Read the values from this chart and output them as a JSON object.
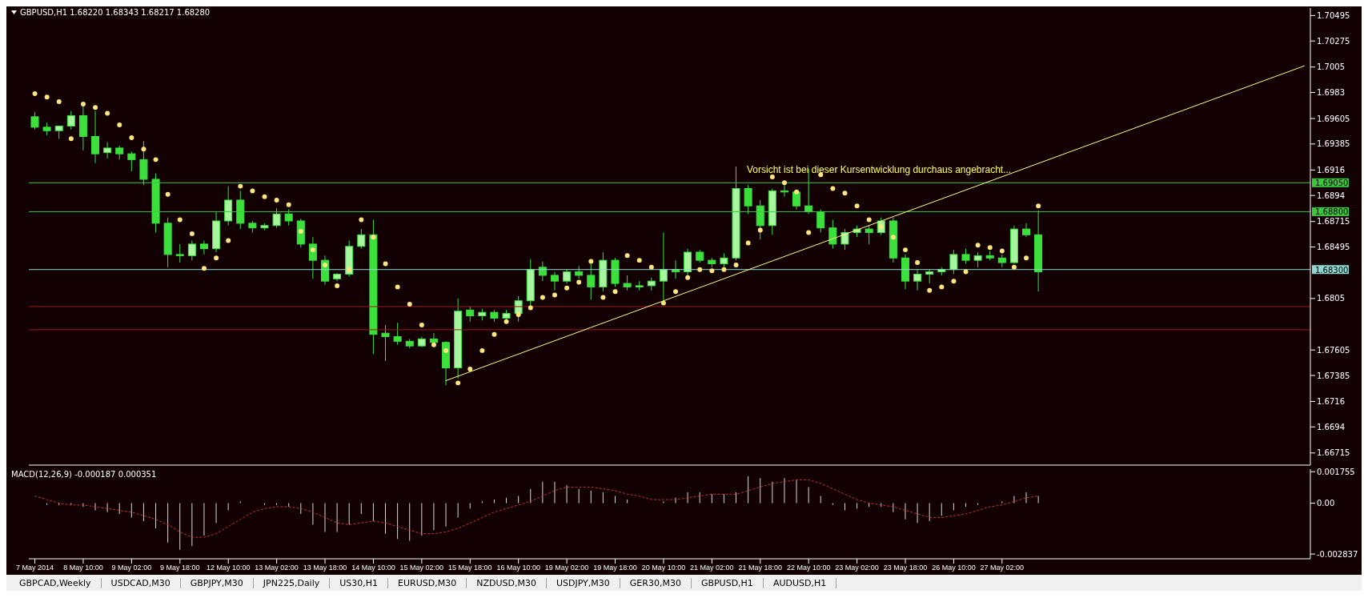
{
  "chart_data": [
    {
      "type": "candlestick",
      "title": "GBPUSD,H1  1.68220 1.68343 1.68217 1.68280",
      "color": "#3ce03c",
      "tick_labels": "y",
      "categories": [
        null,
        null,
        null,
        null,
        null,
        null,
        null,
        null,
        null,
        null,
        null,
        null,
        null,
        null,
        null,
        null,
        null,
        null,
        null,
        null,
        null,
        null,
        null,
        null,
        null,
        null,
        null,
        null,
        null,
        null,
        null,
        null,
        null,
        null,
        null,
        null,
        null,
        null,
        null,
        null,
        null,
        null,
        null,
        null,
        null,
        null,
        null,
        null,
        null,
        null,
        null,
        null,
        null,
        null,
        null,
        null,
        null,
        null,
        null,
        null,
        null,
        null,
        null,
        null,
        null,
        null,
        null,
        null,
        null,
        null,
        null,
        null,
        null,
        null,
        null,
        null,
        null,
        null,
        null,
        null,
        null,
        null,
        null,
        null,
        null,
        null,
        null,
        null,
        null,
        null,
        null,
        null,
        null,
        null,
        null,
        null,
        null,
        null,
        null,
        null,
        null,
        null,
        null,
        null,
        null,
        null
      ],
      "ohlc": [
        [
          1.6962,
          1.6966,
          1.6951,
          1.6953
        ],
        [
          1.6953,
          1.6957,
          1.6946,
          1.695
        ],
        [
          1.695,
          1.6954,
          1.6943,
          1.6954
        ],
        [
          1.6954,
          1.6967,
          1.6951,
          1.6963
        ],
        [
          1.6963,
          1.6973,
          1.6933,
          1.6945
        ],
        [
          1.6945,
          1.6967,
          1.6922,
          1.693
        ],
        [
          1.6931,
          1.694,
          1.6926,
          1.6935
        ],
        [
          1.6935,
          1.6937,
          1.6925,
          1.693
        ],
        [
          1.693,
          1.6932,
          1.6915,
          1.6925
        ],
        [
          1.6925,
          1.6941,
          1.6903,
          1.6908
        ],
        [
          1.6908,
          1.6913,
          1.6862,
          1.687
        ],
        [
          1.687,
          1.6875,
          1.6832,
          1.6843
        ],
        [
          1.6843,
          1.6852,
          1.6836,
          1.6842
        ],
        [
          1.6842,
          1.6855,
          1.6838,
          1.6852
        ],
        [
          1.6852,
          1.6855,
          1.6843,
          1.6848
        ],
        [
          1.6848,
          1.688,
          1.6845,
          1.6872
        ],
        [
          1.6872,
          1.6902,
          1.6868,
          1.689
        ],
        [
          1.689,
          1.6898,
          1.6865,
          1.687
        ],
        [
          1.687,
          1.6872,
          1.6862,
          1.6866
        ],
        [
          1.6866,
          1.687,
          1.6864,
          1.6868
        ],
        [
          1.6868,
          1.6883,
          1.6866,
          1.6878
        ],
        [
          1.6878,
          1.6882,
          1.6868,
          1.6872
        ],
        [
          1.6872,
          1.6874,
          1.6849,
          1.6852
        ],
        [
          1.6852,
          1.6858,
          1.6822,
          1.6838
        ],
        [
          1.6838,
          1.6842,
          1.6817,
          1.682
        ],
        [
          1.6822,
          1.6827,
          1.682,
          1.6826
        ],
        [
          1.6826,
          1.6855,
          1.6824,
          1.685
        ],
        [
          1.685,
          1.6865,
          1.6848,
          1.686
        ],
        [
          1.686,
          1.6873,
          1.6757,
          1.6774
        ],
        [
          1.6775,
          1.6782,
          1.6751,
          1.6772
        ],
        [
          1.6772,
          1.6784,
          1.6765,
          1.6768
        ],
        [
          1.6768,
          1.677,
          1.6762,
          1.6764
        ],
        [
          1.6764,
          1.6772,
          1.6763,
          1.677
        ],
        [
          1.677,
          1.6775,
          1.6765,
          1.6767
        ],
        [
          1.6767,
          1.6768,
          1.673,
          1.6745
        ],
        [
          1.6745,
          1.6805,
          1.6736,
          1.6794
        ],
        [
          1.6795,
          1.6798,
          1.6785,
          1.679
        ],
        [
          1.679,
          1.6796,
          1.6786,
          1.6793
        ],
        [
          1.6793,
          1.6795,
          1.6785,
          1.6788
        ],
        [
          1.6788,
          1.6795,
          1.6786,
          1.6792
        ],
        [
          1.6792,
          1.6807,
          1.6785,
          1.6803
        ],
        [
          1.6803,
          1.6839,
          1.6797,
          1.683
        ],
        [
          1.6832,
          1.6837,
          1.682,
          1.6825
        ],
        [
          1.6825,
          1.6828,
          1.6812,
          1.682
        ],
        [
          1.682,
          1.683,
          1.6818,
          1.6828
        ],
        [
          1.6828,
          1.6833,
          1.6822,
          1.6825
        ],
        [
          1.6825,
          1.6835,
          1.6804,
          1.6815
        ],
        [
          1.6815,
          1.6845,
          1.6811,
          1.6838
        ],
        [
          1.6838,
          1.684,
          1.6815,
          1.6818
        ],
        [
          1.6818,
          1.6825,
          1.6812,
          1.6815
        ],
        [
          1.6815,
          1.682,
          1.6812,
          1.6816
        ],
        [
          1.6816,
          1.6823,
          1.6812,
          1.682
        ],
        [
          1.682,
          1.6862,
          1.6802,
          1.683
        ],
        [
          1.683,
          1.6838,
          1.6822,
          1.6828
        ],
        [
          1.6828,
          1.6848,
          1.6825,
          1.6845
        ],
        [
          1.6845,
          1.6847,
          1.6836,
          1.6838
        ],
        [
          1.6838,
          1.684,
          1.6832,
          1.6835
        ],
        [
          1.6835,
          1.6844,
          1.6832,
          1.684
        ],
        [
          1.684,
          1.6919,
          1.6838,
          1.69
        ],
        [
          1.69,
          1.6903,
          1.6878,
          1.6885
        ],
        [
          1.6885,
          1.689,
          1.6856,
          1.6868
        ],
        [
          1.6868,
          1.69,
          1.686,
          1.6898
        ],
        [
          1.6898,
          1.6903,
          1.6893,
          1.6897
        ],
        [
          1.6897,
          1.6898,
          1.6882,
          1.6885
        ],
        [
          1.6885,
          1.6917,
          1.6878,
          1.688
        ],
        [
          1.688,
          1.6882,
          1.6862,
          1.6866
        ],
        [
          1.6866,
          1.6873,
          1.6848,
          1.6852
        ],
        [
          1.6852,
          1.6865,
          1.6847,
          1.6862
        ],
        [
          1.6862,
          1.6868,
          1.6858,
          1.6865
        ],
        [
          1.6865,
          1.6868,
          1.6852,
          1.6862
        ],
        [
          1.6862,
          1.6875,
          1.686,
          1.6872
        ],
        [
          1.6872,
          1.6875,
          1.6836,
          1.684
        ],
        [
          1.684,
          1.6843,
          1.6813,
          1.682
        ],
        [
          1.682,
          1.683,
          1.6812,
          1.6826
        ],
        [
          1.6826,
          1.683,
          1.6818,
          1.6828
        ],
        [
          1.6828,
          1.6832,
          1.6825,
          1.683
        ],
        [
          1.683,
          1.6847,
          1.6826,
          1.6843
        ],
        [
          1.6843,
          1.6848,
          1.6835,
          1.6838
        ],
        [
          1.6838,
          1.6845,
          1.6832,
          1.6842
        ],
        [
          1.6842,
          1.6846,
          1.6838,
          1.684
        ],
        [
          1.684,
          1.6843,
          1.6832,
          1.6836
        ],
        [
          1.6836,
          1.6868,
          1.6835,
          1.6865
        ],
        [
          1.6865,
          1.687,
          1.6858,
          1.686
        ],
        [
          1.686,
          1.6881,
          1.6811,
          1.6828
        ],
        null,
        null,
        null,
        null,
        null,
        null,
        null,
        null,
        null,
        null,
        null,
        null,
        null,
        null,
        null,
        null,
        null,
        null,
        null,
        null,
        null,
        null
      ],
      "series": [
        {
          "type": "scatter",
          "color": "#ffe680",
          "marker": "circle",
          "values": [
            1.6982,
            1.6979,
            1.6975,
            1.6943,
            1.6973,
            1.697,
            1.6965,
            1.6955,
            1.6944,
            1.6934,
            1.6925,
            1.6895,
            1.6873,
            1.6861,
            1.6831,
            1.684,
            1.6855,
            1.6902,
            1.6898,
            1.6893,
            1.689,
            1.6886,
            1.6863,
            1.6847,
            1.6834,
            1.6816,
            1.683,
            1.6873,
            1.6858,
            1.6835,
            1.6815,
            1.68,
            1.6782,
            1.6765,
            1.676,
            1.6732,
            1.6744,
            1.676,
            1.6774,
            1.6785,
            1.6791,
            1.6797,
            1.6806,
            1.6808,
            1.6814,
            1.6819,
            1.6837,
            1.6806,
            1.6811,
            1.6842,
            1.6838,
            1.6832,
            1.6801,
            1.6811,
            1.6823,
            1.683,
            1.6829,
            1.683,
            1.6834,
            1.6853,
            1.6864,
            1.691,
            1.6905,
            1.6897,
            1.6862,
            1.6912,
            1.69,
            1.6896,
            1.6885,
            1.6873,
            1.6867,
            1.6858,
            1.6847,
            1.6836,
            1.6812,
            1.6815,
            1.682,
            1.6828,
            1.6851,
            1.6849,
            1.6846,
            1.6832,
            1.684,
            1.6885,
            null,
            null,
            null,
            null,
            null,
            null,
            null,
            null,
            null,
            null,
            null,
            null,
            null,
            null,
            null,
            null,
            null,
            null,
            null,
            null,
            null,
            null
          ]
        },
        {
          "type": "line",
          "color": "#ffff80",
          "line_style": "solid",
          "values": [
            null,
            null,
            null,
            null,
            null,
            null,
            null,
            null,
            null,
            null,
            null,
            null,
            null,
            null,
            null,
            null,
            null,
            null,
            null,
            null,
            null,
            null,
            null,
            null,
            null,
            null,
            null,
            null,
            null,
            null,
            null,
            null,
            null,
            null,
            1.6734,
            null,
            null,
            null,
            null,
            null,
            null,
            null,
            null,
            null,
            null,
            null,
            null,
            null,
            null,
            null,
            null,
            null,
            null,
            null,
            null,
            null,
            null,
            null,
            null,
            null,
            null,
            null,
            null,
            null,
            null,
            null,
            null,
            null,
            null,
            null,
            null,
            null,
            null,
            null,
            null,
            null,
            null,
            null,
            null,
            null,
            null,
            null,
            null,
            null,
            null,
            null,
            null,
            null,
            null,
            null,
            null,
            null,
            null,
            null,
            null,
            null,
            null,
            null,
            null,
            null,
            null,
            null,
            null,
            null,
            null,
            1.7006
          ]
        }
      ],
      "ylim": [
        1.6661,
        1.7056
      ],
      "yticks": [
        1.66715,
        1.6694,
        1.6716,
        1.67385,
        1.67605,
        1.6805,
        1.68495,
        1.68715,
        1.6894,
        1.6916,
        1.69385,
        1.69605,
        1.6983,
        1.7005,
        1.70275,
        1.70495
      ],
      "ref_lines": [
        {
          "axis": "y",
          "value": 1.6905,
          "label": "1.69050",
          "color": "#3cc83c"
        },
        {
          "axis": "y",
          "value": 1.688,
          "label": "1.68800",
          "color": "#3cc83c"
        },
        {
          "axis": "y",
          "value": 1.683,
          "label": "1.68300",
          "color": "#8fd8d0"
        },
        {
          "axis": "y",
          "value": 1.6798,
          "label": null,
          "color": "#a01818"
        },
        {
          "axis": "y",
          "value": 1.6778,
          "label": null,
          "color": "#a01818"
        }
      ],
      "annotations": [
        "Vorsicht ist bei dieser Kursentwicklung durchaus angebracht..."
      ]
    },
    {
      "type": "bar",
      "title": "MACD(12,26,9) -0.000187 0.000351",
      "categories": [
        "7 May 2014",
        null,
        null,
        null,
        "8 May 10:00",
        null,
        null,
        null,
        "9 May 02:00",
        null,
        null,
        null,
        "9 May 18:00",
        null,
        null,
        null,
        "12 May 10:00",
        null,
        null,
        null,
        "13 May 02:00",
        null,
        null,
        null,
        "13 May 18:00",
        null,
        null,
        null,
        "14 May 10:00",
        null,
        null,
        null,
        "15 May 02:00",
        null,
        null,
        null,
        "15 May 18:00",
        null,
        null,
        null,
        "16 May 10:00",
        null,
        null,
        null,
        "19 May 02:00",
        null,
        null,
        null,
        "19 May 18:00",
        null,
        null,
        null,
        "20 May 10:00",
        null,
        null,
        null,
        "21 May 02:00",
        null,
        null,
        null,
        "21 May 18:00",
        null,
        null,
        null,
        "22 May 10:00",
        null,
        null,
        null,
        "23 May 02:00",
        null,
        null,
        null,
        "23 May 18:00",
        null,
        null,
        null,
        "26 May 10:00",
        null,
        null,
        null,
        "27 May 02:00",
        null,
        null,
        null,
        null,
        null,
        null,
        null,
        null,
        null,
        null,
        null,
        null,
        null,
        null,
        null,
        null,
        null,
        null,
        null,
        null,
        null,
        null,
        null,
        null,
        null
      ],
      "series": [
        {
          "type": "bar",
          "color": "#d8d8d8",
          "values": [
            0,
            -0.0001,
            -0.0001,
            -0.0001,
            -0.0002,
            -0.0004,
            -0.0005,
            -0.0006,
            -0.0008,
            -0.001,
            -0.0014,
            -0.0022,
            -0.0026,
            -0.0024,
            -0.0018,
            -0.0011,
            -0.0004,
            0.0001,
            0,
            -0.0001,
            -0.0001,
            -0.0002,
            -0.0006,
            -0.0012,
            -0.0016,
            -0.0016,
            -0.0012,
            -0.0006,
            -0.001,
            -0.0017,
            -0.002,
            -0.0021,
            -0.0018,
            -0.0015,
            -0.0013,
            -0.0008,
            -0.0003,
            0.0001,
            0.0002,
            0.0003,
            0.0004,
            0.0008,
            0.0012,
            0.0012,
            0.001,
            0.0008,
            0.0007,
            0.0006,
            0.0004,
            0.0002,
            0,
            0,
            0.0001,
            0.0003,
            0.0006,
            0.0006,
            0.0005,
            0.0005,
            0.0006,
            0.0015,
            0.0014,
            0.0012,
            0.0014,
            0.0013,
            0.0009,
            0.0004,
            -0.0001,
            -0.0004,
            -0.0003,
            -0.0002,
            -0.0002,
            -0.0005,
            -0.0009,
            -0.0011,
            -0.001,
            -0.0007,
            -0.0004,
            -0.0002,
            -0.0001,
            0,
            0.0001,
            0.0004,
            0.0006,
            0.0004,
            null,
            null,
            null,
            null,
            null,
            null,
            null,
            null,
            null,
            null,
            null,
            null,
            null,
            null,
            null,
            null,
            null,
            null,
            null,
            null,
            null,
            null
          ]
        },
        {
          "type": "line",
          "color": "#c83232",
          "line_style": "dotted",
          "values": [
            0.0004,
            0.0002,
            0,
            -0.0001,
            -0.0001,
            -0.0002,
            -0.0003,
            -0.0004,
            -0.0005,
            -0.0007,
            -0.0009,
            -0.0012,
            -0.0016,
            -0.0019,
            -0.0019,
            -0.0017,
            -0.0013,
            -0.0009,
            -0.0005,
            -0.0003,
            -0.0002,
            -0.0002,
            -0.0003,
            -0.0005,
            -0.0008,
            -0.0011,
            -0.0012,
            -0.0011,
            -0.001,
            -0.0011,
            -0.0013,
            -0.0015,
            -0.0017,
            -0.0017,
            -0.0016,
            -0.0014,
            -0.0011,
            -0.0008,
            -0.0005,
            -0.0003,
            -0.0001,
            0.0001,
            0.0004,
            0.0007,
            0.0009,
            0.0009,
            0.0009,
            0.0008,
            0.0007,
            0.0005,
            0.0004,
            0.0002,
            0.0002,
            0.0002,
            0.0003,
            0.0004,
            0.0005,
            0.0005,
            0.0005,
            0.0007,
            0.0009,
            0.0011,
            0.0012,
            0.0013,
            0.0013,
            0.0011,
            0.0008,
            0.0005,
            0.0002,
            0,
            -0.0001,
            -0.0002,
            -0.0004,
            -0.0006,
            -0.0008,
            -0.0008,
            -0.0007,
            -0.0006,
            -0.0004,
            -0.0002,
            -0.0001,
            0.0001,
            0.0003,
            0.0004,
            null,
            null,
            null,
            null,
            null,
            null,
            null,
            null,
            null,
            null,
            null,
            null,
            null,
            null,
            null,
            null,
            null,
            null,
            null,
            null,
            null,
            null
          ]
        }
      ],
      "ylim": [
        -0.0031,
        0.0019
      ],
      "yticks": [
        -0.002837,
        {
          "value": 0,
          "label": "0.00"
        },
        0.001755
      ],
      "annotations": [
        "GBPCAD,Weekly",
        "USDCAD,M30",
        "GBPJPY,M30",
        "JPN225,Daily",
        "US30,H1",
        "EURUSD,M30",
        "NZDUSD,M30",
        "USDJPY,M30",
        "GER30,M30",
        "GBPUSD,H1",
        "AUDUSD,H1"
      ]
    }
  ]
}
